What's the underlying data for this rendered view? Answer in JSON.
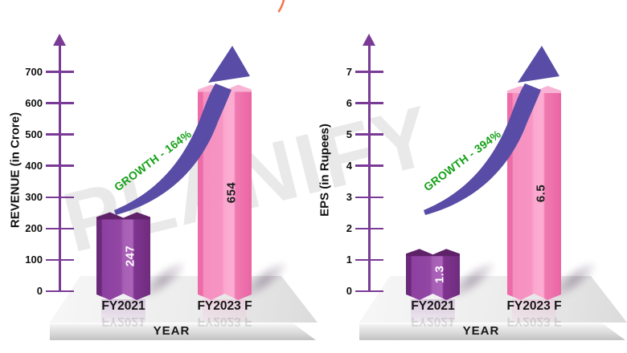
{
  "watermark": {
    "text": "PLANIFY"
  },
  "colors": {
    "axis_purple": "#7a3b96",
    "arrow_indigo": "#584ca6",
    "growth_green": "#16a018",
    "bar_purple_face": "#8d40a0",
    "bar_purple_dark": "#6a2a79",
    "bar_purple_light": "#a75fb6",
    "bar_purple_cap": "#5f2269",
    "bar_pink_face": "#f58fc0",
    "bar_pink_dark": "#ed6ba7",
    "bar_pink_light": "#fba8cf",
    "bar_pink_cap": "#f9b3d4",
    "watermark_gray": "#e9e9e9",
    "orange_accent": "#f07a52",
    "value_on_purple": "#ffffff",
    "value_on_pink": "#1c1c1c"
  },
  "chart_data": [
    {
      "type": "bar",
      "title": "",
      "ylabel": "REVENUE (in Crore)",
      "xlabel": "YEAR",
      "categories": [
        "FY2021",
        "FY2023 F"
      ],
      "values": [
        247,
        654
      ],
      "value_labels": [
        "247",
        "654"
      ],
      "bar_styles": [
        "purple",
        "pink"
      ],
      "yticks": [
        0,
        100,
        200,
        300,
        400,
        500,
        600,
        700
      ],
      "ylim": [
        0,
        780
      ],
      "annotation": "GROWTH - 164%",
      "grid": false,
      "legend": false
    },
    {
      "type": "bar",
      "title": "",
      "ylabel": "EPS (in Rupees)",
      "xlabel": "YEAR",
      "categories": [
        "FY2021",
        "FY2023 F"
      ],
      "values": [
        1.3,
        6.5
      ],
      "value_labels": [
        "1.3",
        "6.5"
      ],
      "bar_styles": [
        "purple",
        "pink"
      ],
      "yticks": [
        0,
        1,
        2,
        3,
        4,
        5,
        6,
        7
      ],
      "ylim": [
        0,
        7.8
      ],
      "annotation": "GROWTH - 394%",
      "grid": false,
      "legend": false
    }
  ]
}
